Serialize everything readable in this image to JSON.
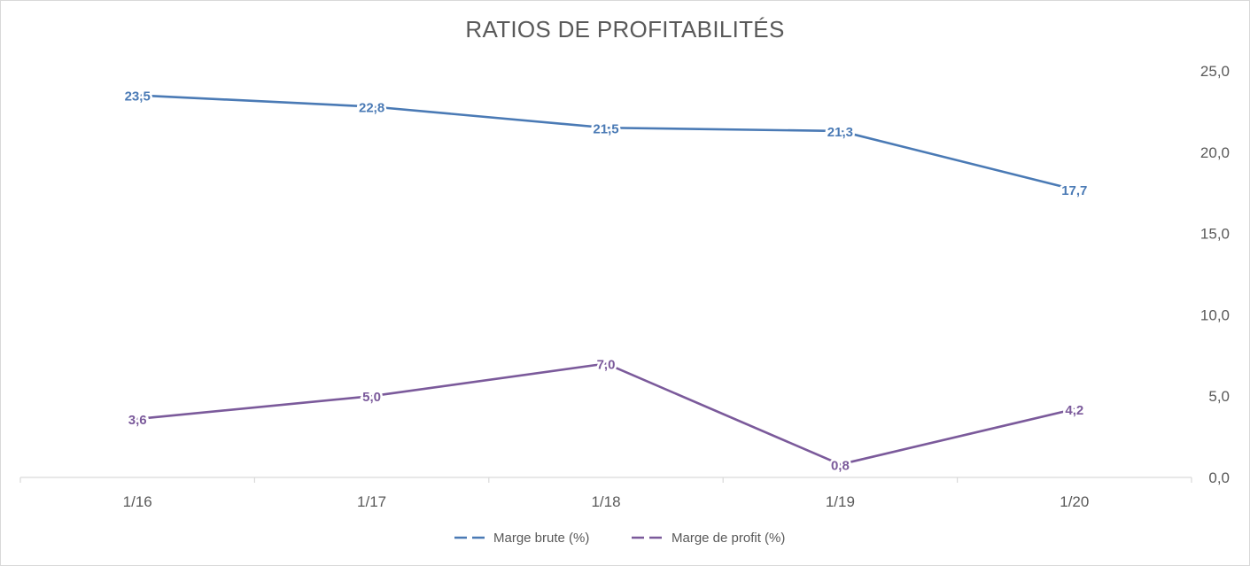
{
  "chart_data": {
    "type": "line",
    "title": "RATIOS DE PROFITABILITÉS",
    "categories": [
      "1/16",
      "1/17",
      "1/18",
      "1/19",
      "1/20"
    ],
    "series": [
      {
        "name": "Marge brute (%)",
        "values": [
          23.5,
          22.8,
          21.5,
          21.3,
          17.7
        ],
        "labels": [
          "23,5",
          "22,8",
          "21,5",
          "21,3",
          "17,7"
        ],
        "color": "#4a7ab5"
      },
      {
        "name": "Marge de profit (%)",
        "values": [
          3.6,
          5.0,
          7.0,
          0.8,
          4.2
        ],
        "labels": [
          "3,6",
          "5,0",
          "7,0",
          "0,8",
          "4,2"
        ],
        "color": "#7b5a9b"
      }
    ],
    "y_axis": {
      "position": "right",
      "ylim": [
        0,
        25
      ],
      "ticks": [
        0,
        5,
        10,
        15,
        20,
        25
      ],
      "tick_labels": [
        "0,0",
        "5,0",
        "10,0",
        "15,0",
        "20,0",
        "25,0"
      ]
    },
    "grid": false,
    "legend": "bottom-center"
  }
}
